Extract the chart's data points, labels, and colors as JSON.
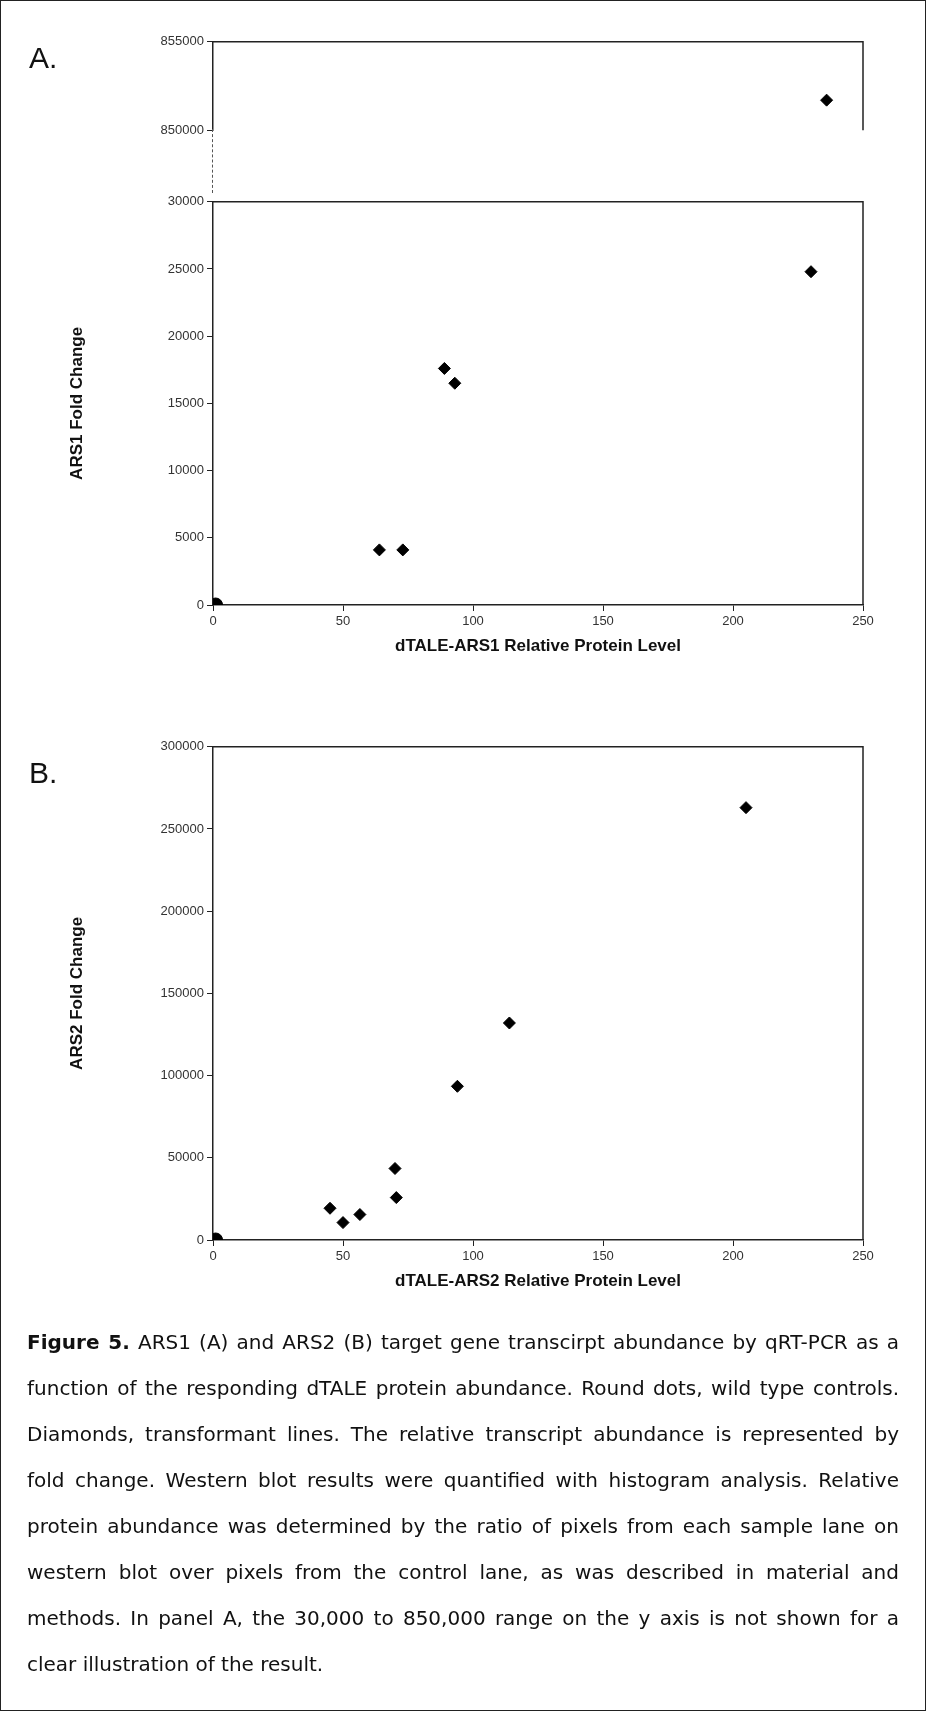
{
  "chart_data": [
    {
      "type": "scatter",
      "title": "A.",
      "xlim": [
        0,
        250
      ],
      "ylim": [
        850000,
        855000
      ],
      "yticks": [
        850000,
        855000
      ],
      "tick_labels": "y",
      "grid": false,
      "series": [
        {
          "marker": "diamond",
          "color": "#000000",
          "x": [
            236
          ],
          "values": [
            851700
          ]
        }
      ]
    },
    {
      "type": "scatter",
      "xlabel": "dTALE-ARS1 Relative Protein Level",
      "ylabel": "ARS1 Fold Change",
      "xlim": [
        0,
        250
      ],
      "xticks": [
        0,
        50,
        100,
        150,
        200,
        250
      ],
      "ylim": [
        0,
        30000
      ],
      "yticks": [
        0,
        5000,
        10000,
        15000,
        20000,
        25000,
        30000
      ],
      "grid": false,
      "series": [
        {
          "marker": "circle",
          "color": "#000000",
          "x": [
            1
          ],
          "values": [
            0
          ]
        },
        {
          "marker": "diamond",
          "color": "#000000",
          "x": [
            64,
            73,
            89,
            93,
            230
          ],
          "values": [
            4100,
            4100,
            17600,
            16500,
            24800
          ]
        }
      ]
    },
    {
      "type": "scatter",
      "title": "B.",
      "xlabel": "dTALE-ARS2 Relative Protein Level",
      "ylabel": "ARS2 Fold Change",
      "xlim": [
        0,
        250
      ],
      "xticks": [
        0,
        50,
        100,
        150,
        200,
        250
      ],
      "ylim": [
        0,
        300000
      ],
      "yticks": [
        0,
        50000,
        100000,
        150000,
        200000,
        250000,
        300000
      ],
      "grid": false,
      "series": [
        {
          "marker": "circle",
          "color": "#000000",
          "x": [
            1
          ],
          "values": [
            0
          ]
        },
        {
          "marker": "diamond",
          "color": "#000000",
          "x": [
            45,
            50,
            56.5,
            70,
            70.5,
            94,
            114,
            205
          ],
          "values": [
            19300,
            10600,
            15500,
            43500,
            25800,
            93500,
            132000,
            263000
          ]
        }
      ]
    },
    {
      "type": "other",
      "title": "Figure 5.",
      "annotations": [
        "ARS1 (A) and ARS2 (B) target gene transcirpt abundance by qRT-PCR as a function of the responding dTALE protein abundance. Round dots, wild type controls. Diamonds, transformant lines. The relative transcript abundance is represented by fold change. Western blot results were quantified with histogram analysis. Relative protein abundance was determined by the ratio of pixels from each sample lane on western blot over pixels from the control lane, as was described in material and methods. In panel A, the 30,000 to 850,000 range on the y axis is not shown for a clear illustration of the result."
      ]
    }
  ]
}
